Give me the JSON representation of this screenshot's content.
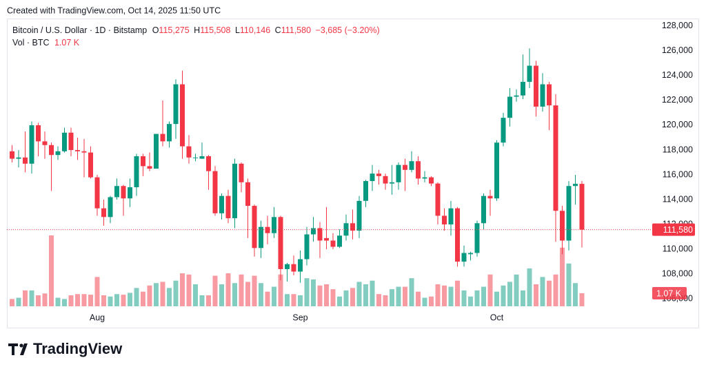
{
  "header": {
    "created": "Created with TradingView.com, Oct 14, 2025 11:50 UTC"
  },
  "legend": {
    "symbol": "Bitcoin / U.S. Dollar · 1D · Bitstamp",
    "o_label": "O",
    "open": "115,275",
    "h_label": "H",
    "high": "115,508",
    "l_label": "L",
    "low": "110,146",
    "c_label": "C",
    "change": "−3,685 (−3.20%)",
    "vol_label": "Vol · BTC"
  },
  "footer": {
    "brand": "TradingView"
  },
  "chart_data": {
    "type": "candlestick",
    "categories": [
      null,
      null,
      null,
      null,
      null,
      null,
      null,
      null,
      null,
      null,
      null,
      null,
      null,
      "Aug",
      null,
      null,
      null,
      null,
      null,
      null,
      null,
      null,
      null,
      null,
      null,
      null,
      null,
      null,
      null,
      null,
      null,
      null,
      null,
      null,
      null,
      null,
      null,
      null,
      null,
      null,
      null,
      null,
      null,
      null,
      "Sep",
      null,
      null,
      null,
      null,
      null,
      null,
      null,
      null,
      null,
      null,
      null,
      null,
      null,
      null,
      null,
      null,
      null,
      null,
      null,
      null,
      null,
      null,
      null,
      null,
      null,
      null,
      null,
      null,
      null,
      "Oct",
      null,
      null,
      null,
      null,
      null,
      null,
      null,
      null,
      null,
      null,
      null,
      null,
      null
    ],
    "open": [
      117900,
      117300,
      117400,
      116900,
      120000,
      118700,
      118400,
      117600,
      117900,
      119400,
      118000,
      117900,
      117800,
      115800,
      113300,
      112600,
      114200,
      115100,
      114100,
      115000,
      117500,
      116700,
      116500,
      119300,
      118700,
      120100,
      123300,
      118300,
      117400,
      117300,
      117500,
      116300,
      112900,
      114300,
      112500,
      116900,
      115400,
      113500,
      110100,
      111800,
      111300,
      112600,
      108400,
      108800,
      108200,
      109200,
      111200,
      111700,
      110900,
      110700,
      110200,
      111100,
      112100,
      111500,
      113900,
      115500,
      116100,
      115900,
      115300,
      115400,
      116800,
      116400,
      117100,
      115700,
      115800,
      115300,
      112700,
      112000,
      113300,
      109000,
      109600,
      109700,
      112100,
      114300,
      114100,
      118600,
      120600,
      122300,
      122400,
      123500,
      124800,
      121500,
      123300,
      121600,
      113100,
      110700,
      115100,
      115275
    ],
    "high": [
      118400,
      118000,
      119500,
      120300,
      120200,
      119500,
      118600,
      118300,
      119800,
      119800,
      119000,
      118900,
      118300,
      116000,
      114000,
      114300,
      115700,
      115200,
      115700,
      117700,
      117700,
      117800,
      119300,
      122000,
      120300,
      123700,
      124400,
      119200,
      117700,
      118600,
      117600,
      116700,
      114500,
      114800,
      117300,
      117000,
      115700,
      113600,
      112300,
      112700,
      113400,
      112700,
      108900,
      109500,
      109900,
      111800,
      112600,
      112200,
      113400,
      111300,
      111600,
      112800,
      113200,
      114300,
      115600,
      116800,
      116400,
      116100,
      116800,
      117000,
      117300,
      117900,
      117500,
      116300,
      115900,
      115400,
      113300,
      113900,
      113400,
      110300,
      109800,
      112300,
      114500,
      114800,
      118800,
      121000,
      123000,
      122900,
      125700,
      126200,
      125200,
      124200,
      123500,
      122500,
      113500,
      115500,
      116000,
      115508
    ],
    "low": [
      117000,
      116600,
      116200,
      116100,
      117500,
      117300,
      114700,
      117200,
      117800,
      117500,
      117200,
      115800,
      115700,
      112700,
      111900,
      112100,
      114000,
      112700,
      113400,
      114300,
      115900,
      116300,
      116500,
      118300,
      118200,
      118900,
      117300,
      116900,
      117100,
      117300,
      114800,
      112700,
      112400,
      112100,
      111700,
      114600,
      110900,
      109400,
      109300,
      110400,
      110900,
      107500,
      107400,
      107900,
      107300,
      108700,
      110600,
      109300,
      110000,
      110000,
      110100,
      110700,
      110800,
      110900,
      113400,
      114700,
      115200,
      114800,
      114400,
      114800,
      114700,
      116200,
      115200,
      115400,
      115100,
      112000,
      111500,
      111100,
      108600,
      108600,
      109100,
      109400,
      111600,
      112700,
      113900,
      118300,
      119900,
      121900,
      122100,
      123000,
      120700,
      121100,
      119600,
      110600,
      109600,
      109900,
      113600,
      110146
    ],
    "close": [
      117300,
      117400,
      116900,
      120000,
      118700,
      118400,
      117600,
      117900,
      119400,
      118000,
      117900,
      117800,
      115800,
      113300,
      112600,
      114200,
      115100,
      114100,
      115000,
      117500,
      116700,
      116500,
      119300,
      118700,
      120100,
      123300,
      118300,
      117400,
      117400,
      117500,
      116300,
      112900,
      114300,
      112500,
      116900,
      115400,
      113500,
      110100,
      111800,
      111300,
      112600,
      108400,
      108800,
      108200,
      109200,
      111200,
      111700,
      110700,
      110700,
      110200,
      111100,
      112100,
      111500,
      113900,
      115500,
      116100,
      115900,
      115300,
      115400,
      116800,
      116400,
      117100,
      115700,
      115800,
      115300,
      112700,
      112000,
      113300,
      109000,
      109700,
      109700,
      112100,
      114300,
      114100,
      118600,
      120600,
      122300,
      122400,
      123500,
      124800,
      121500,
      123300,
      121600,
      113100,
      110700,
      115100,
      115275,
      111580
    ],
    "volume": [
      600,
      700,
      1300,
      1300,
      900,
      1050,
      5800,
      700,
      600,
      900,
      1000,
      1000,
      950,
      2400,
      900,
      800,
      1000,
      950,
      1100,
      1500,
      1200,
      1700,
      1900,
      2000,
      1500,
      2100,
      2700,
      2600,
      1800,
      900,
      900,
      2500,
      1800,
      2700,
      1900,
      2600,
      2000,
      2500,
      1900,
      1200,
      1600,
      2600,
      1000,
      1000,
      900,
      2300,
      2200,
      1700,
      1800,
      1400,
      800,
      1300,
      1500,
      2000,
      1800,
      2100,
      1000,
      900,
      1400,
      1600,
      1600,
      2300,
      1200,
      700,
      800,
      1800,
      1700,
      1600,
      2100,
      1300,
      800,
      1300,
      1600,
      2600,
      1200,
      1700,
      2000,
      2600,
      1300,
      3100,
      1800,
      2400,
      2100,
      2600,
      4800,
      3500,
      1900,
      1070
    ],
    "up_color": "#089981",
    "down_color": "#f23645",
    "ylim": [
      105400,
      128600
    ],
    "yticks": [
      {
        "value": 106000,
        "label": "106,000"
      },
      {
        "value": 108000,
        "label": "108,000"
      },
      {
        "value": 110000,
        "label": "110,000"
      },
      {
        "value": 112000,
        "label": "112,000"
      },
      {
        "value": 114000,
        "label": "114,000"
      },
      {
        "value": 116000,
        "label": "116,000"
      },
      {
        "value": 118000,
        "label": "118,000"
      },
      {
        "value": 120000,
        "label": "120,000"
      },
      {
        "value": 122000,
        "label": "122,000"
      },
      {
        "value": 124000,
        "label": "124,000"
      },
      {
        "value": 126000,
        "label": "126,000"
      },
      {
        "value": 128000,
        "label": "128,000"
      }
    ],
    "grid": false,
    "last_price": {
      "value": 111580,
      "label": "111,580"
    },
    "last_volume": {
      "value": 1070,
      "label": "1.07 K"
    }
  }
}
